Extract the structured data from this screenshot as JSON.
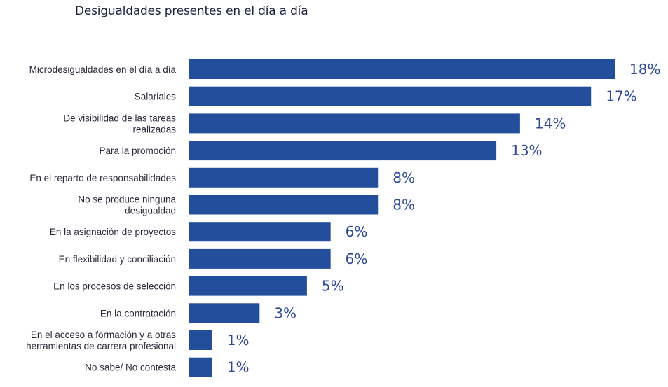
{
  "chart_data": {
    "type": "bar",
    "orientation": "horizontal",
    "title": "Desigualdades presentes en el día a día",
    "xlabel": "",
    "ylabel": "",
    "unit": "%",
    "xlim": [
      0,
      18
    ],
    "grid": false,
    "bar_color": "#234e9c",
    "label_color": "#2d4a9a",
    "categories": [
      [
        "Microdesigualdades en el día a día"
      ],
      [
        "Salariales"
      ],
      [
        "De visibilidad de las tareas",
        "realizadas"
      ],
      [
        "Para la promoción"
      ],
      [
        "En el reparto de responsabilidades"
      ],
      [
        "No se produce ninguna",
        "desigualdad"
      ],
      [
        "En la asignación de proyectos"
      ],
      [
        "En flexibilidad y conciliación"
      ],
      [
        "En los procesos de selección"
      ],
      [
        "En la contratación"
      ],
      [
        "En el acceso a formación y a otras",
        "herramientas de carrera profesional"
      ],
      [
        "No sabe/ No contesta"
      ]
    ],
    "values": [
      18,
      17,
      14,
      13,
      8,
      8,
      6,
      6,
      5,
      3,
      1,
      1
    ],
    "value_labels": [
      "18%",
      "17%",
      "14%",
      "13%",
      "8%",
      "8%",
      "6%",
      "6%",
      "5%",
      "3%",
      "1%",
      "1%"
    ]
  }
}
